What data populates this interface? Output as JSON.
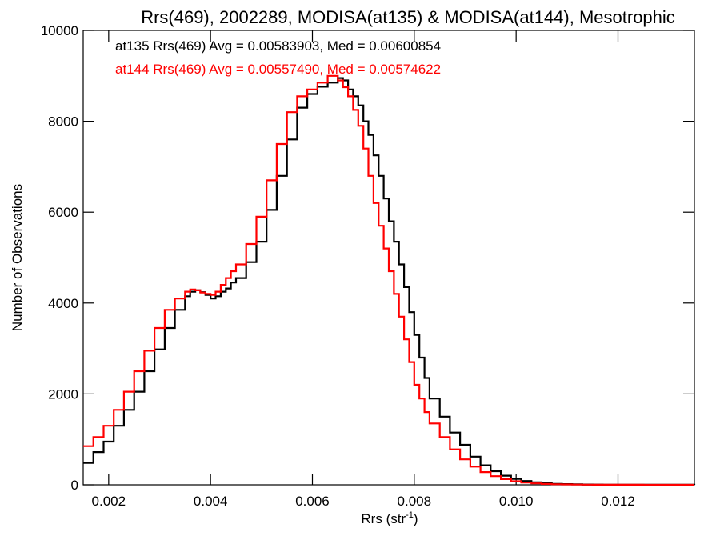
{
  "chart_data": {
    "type": "line",
    "title": "Rrs(469), 2002289, MODISA(at135) & MODISA(at144), Mesotrophic",
    "xlabel": "Rrs (str",
    "xlabel_sup": "-1",
    "xlabel_close": ")",
    "ylabel": "Number of Observations",
    "xlim": [
      0.0015,
      0.0135
    ],
    "ylim": [
      0,
      10000
    ],
    "x_ticks": [
      0.002,
      0.004,
      0.006,
      0.008,
      0.01,
      0.012
    ],
    "x_tick_labels": [
      "0.002",
      "0.004",
      "0.006",
      "0.008",
      "0.010",
      "0.012"
    ],
    "y_ticks": [
      0,
      2000,
      4000,
      6000,
      8000,
      10000
    ],
    "y_tick_labels": [
      "0",
      "2000",
      "4000",
      "6000",
      "8000",
      "10000"
    ],
    "grid": false,
    "step": true,
    "series": [
      {
        "name": "at135",
        "color": "#000000",
        "annotation": "at135 Rrs(469) Avg = 0.00583903, Med = 0.00600854",
        "x": [
          0.0015,
          0.0017,
          0.0019,
          0.0021,
          0.0023,
          0.0025,
          0.0027,
          0.0029,
          0.0031,
          0.0033,
          0.0035,
          0.0036,
          0.0037,
          0.0038,
          0.0039,
          0.004,
          0.0041,
          0.0042,
          0.0043,
          0.0044,
          0.0045,
          0.0047,
          0.0049,
          0.0051,
          0.0053,
          0.0055,
          0.0057,
          0.0059,
          0.0061,
          0.0063,
          0.0065,
          0.0066,
          0.0067,
          0.0068,
          0.0069,
          0.007,
          0.0071,
          0.0072,
          0.0073,
          0.0074,
          0.0075,
          0.0076,
          0.0077,
          0.0078,
          0.0079,
          0.008,
          0.0081,
          0.0082,
          0.0083,
          0.0085,
          0.0087,
          0.0089,
          0.0091,
          0.0093,
          0.0095,
          0.0097,
          0.0099,
          0.0101,
          0.0103,
          0.0105,
          0.0107,
          0.0109,
          0.0111,
          0.0113,
          0.0115,
          0.0117,
          0.012,
          0.0125,
          0.013,
          0.0135
        ],
        "y": [
          480,
          720,
          950,
          1300,
          1650,
          2050,
          2500,
          2980,
          3450,
          3850,
          4150,
          4250,
          4280,
          4240,
          4180,
          4100,
          4150,
          4250,
          4320,
          4450,
          4550,
          4900,
          5350,
          6050,
          6800,
          7600,
          8300,
          8600,
          8760,
          8850,
          8950,
          8900,
          8700,
          8550,
          8350,
          8000,
          7700,
          7250,
          6800,
          6300,
          5800,
          5350,
          4850,
          4350,
          3800,
          3300,
          2800,
          2350,
          1900,
          1500,
          1150,
          880,
          620,
          430,
          300,
          200,
          130,
          85,
          55,
          35,
          22,
          15,
          10,
          7,
          5,
          4,
          3,
          2,
          1,
          0
        ]
      },
      {
        "name": "at144",
        "color": "#ff0000",
        "annotation": "at144 Rrs(469) Avg = 0.00557490, Med = 0.00574622",
        "x": [
          0.0015,
          0.0017,
          0.0019,
          0.0021,
          0.0023,
          0.0025,
          0.0027,
          0.0029,
          0.0031,
          0.0033,
          0.0035,
          0.0036,
          0.0037,
          0.0038,
          0.0039,
          0.004,
          0.0041,
          0.0042,
          0.0043,
          0.0044,
          0.0045,
          0.0047,
          0.0049,
          0.0051,
          0.0053,
          0.0055,
          0.0057,
          0.0059,
          0.0061,
          0.0063,
          0.0065,
          0.0066,
          0.0067,
          0.0068,
          0.0069,
          0.007,
          0.0071,
          0.0072,
          0.0073,
          0.0074,
          0.0075,
          0.0076,
          0.0077,
          0.0078,
          0.0079,
          0.008,
          0.0081,
          0.0082,
          0.0083,
          0.0085,
          0.0087,
          0.0089,
          0.0091,
          0.0093,
          0.0095,
          0.0097,
          0.0099,
          0.0101,
          0.0103,
          0.0105,
          0.0107,
          0.0109,
          0.0111,
          0.0113,
          0.0115,
          0.0117,
          0.012,
          0.0125,
          0.013,
          0.0135
        ],
        "y": [
          850,
          1050,
          1300,
          1650,
          2050,
          2500,
          2950,
          3450,
          3850,
          4100,
          4250,
          4300,
          4280,
          4230,
          4200,
          4180,
          4250,
          4400,
          4550,
          4700,
          4850,
          5300,
          5900,
          6700,
          7500,
          8200,
          8550,
          8700,
          8850,
          9000,
          8900,
          8750,
          8550,
          8250,
          7900,
          7400,
          6800,
          6200,
          5700,
          5200,
          4700,
          4200,
          3700,
          3200,
          2700,
          2200,
          1900,
          1600,
          1350,
          1050,
          780,
          560,
          400,
          280,
          190,
          125,
          80,
          50,
          32,
          20,
          13,
          8,
          5,
          3,
          2,
          1,
          1,
          0,
          0,
          0
        ]
      }
    ]
  }
}
